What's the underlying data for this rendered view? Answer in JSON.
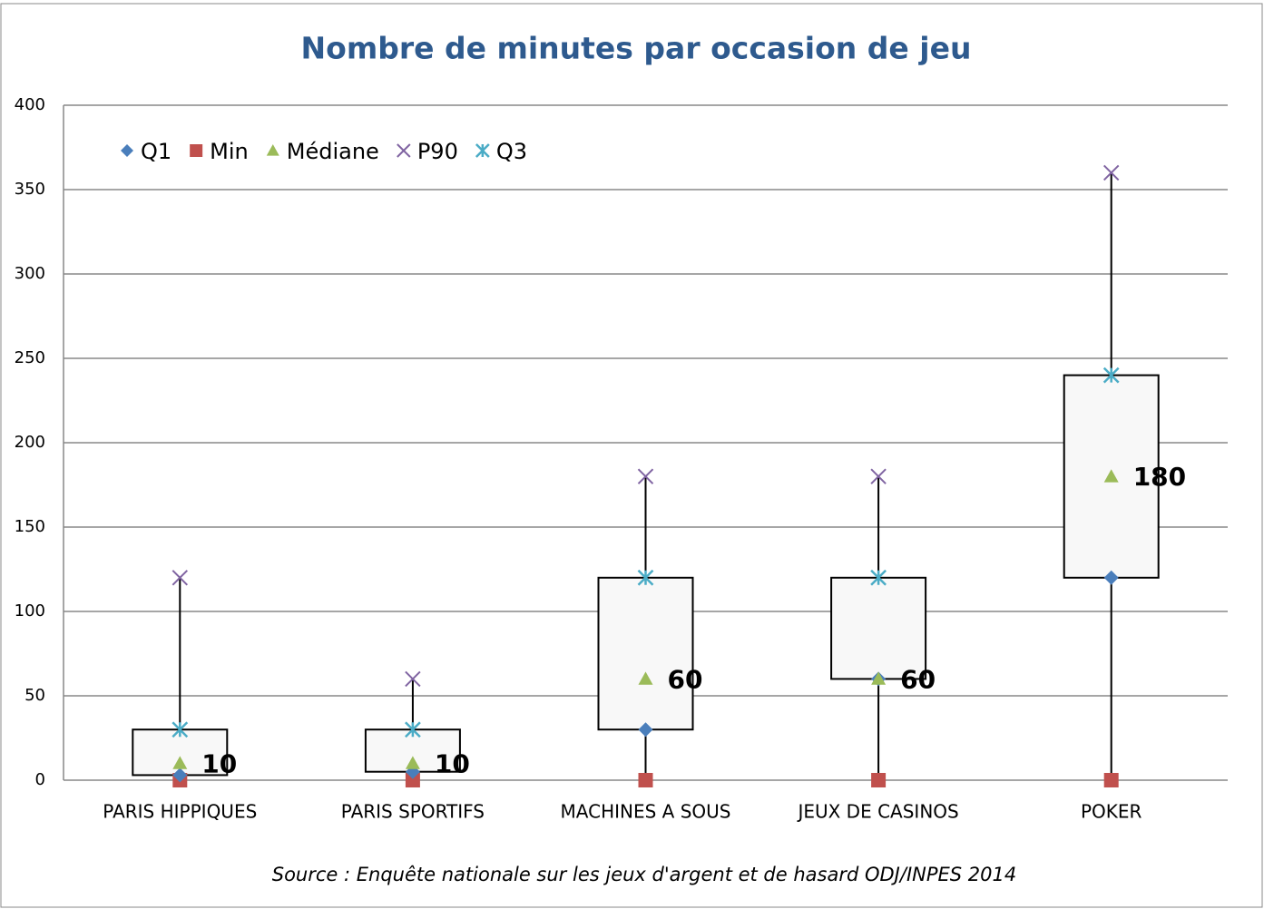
{
  "chart_data": {
    "type": "box",
    "title": "Nombre de minutes par occasion de jeu",
    "source": "Source : Enquête nationale sur les jeux d'argent et de hasard ODJ/INPES 2014",
    "categories": [
      "PARIS HIPPIQUES",
      "PARIS SPORTIFS",
      "MACHINES A SOUS",
      "JEUX DE CASINOS",
      "POKER"
    ],
    "series": [
      {
        "name": "Q1",
        "color": "#4a7ebb",
        "marker": "diamond",
        "values": [
          3,
          5,
          30,
          60,
          120
        ]
      },
      {
        "name": "Min",
        "color": "#c0504d",
        "marker": "square",
        "values": [
          0,
          0,
          0,
          0,
          0
        ]
      },
      {
        "name": "Médiane",
        "color": "#9bbb59",
        "marker": "triangle",
        "values": [
          10,
          10,
          60,
          60,
          180
        ]
      },
      {
        "name": "P90",
        "color": "#8064a2",
        "marker": "x",
        "values": [
          120,
          60,
          180,
          180,
          360
        ]
      },
      {
        "name": "Q3",
        "color": "#4bacc6",
        "marker": "star",
        "values": [
          30,
          30,
          120,
          120,
          240
        ]
      }
    ],
    "ylim": [
      0,
      400
    ],
    "yticks": [
      0,
      50,
      100,
      150,
      200,
      250,
      300,
      350,
      400
    ],
    "grid": true,
    "legend": "top-left"
  }
}
